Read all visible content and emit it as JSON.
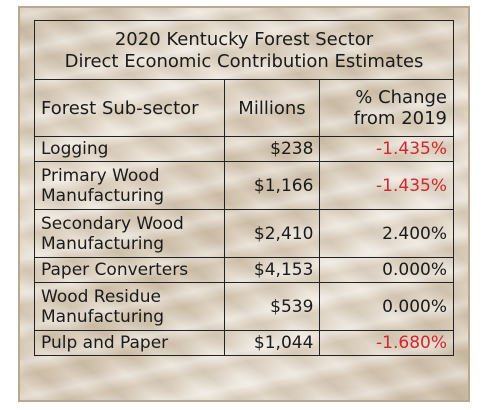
{
  "table": {
    "title_lines": [
      "2020 Kentucky Forest Sector",
      "Direct Economic Contribution Estimates"
    ],
    "headers": {
      "subsector": "Forest Sub-sector",
      "millions": "Millions",
      "pct_lines": [
        "% Change",
        "from 2019"
      ]
    },
    "rows": [
      {
        "subsector_lines": [
          "Logging"
        ],
        "millions": "$238",
        "pct": "-1.435%",
        "pct_color": "#d0282f"
      },
      {
        "subsector_lines": [
          "Primary Wood",
          "Manufacturing"
        ],
        "millions": "$1,166",
        "pct": "-1.435%",
        "pct_color": "#d0282f"
      },
      {
        "subsector_lines": [
          "Secondary Wood",
          "Manufacturing"
        ],
        "millions": "$2,410",
        "pct": "2.400%",
        "pct_color": "#1a1a1a"
      },
      {
        "subsector_lines": [
          "Paper Converters"
        ],
        "millions": "$4,153",
        "pct": "0.000%",
        "pct_color": "#1a1a1a"
      },
      {
        "subsector_lines": [
          "Wood Residue",
          "Manufacturing"
        ],
        "millions": "$539",
        "pct": "0.000%",
        "pct_color": "#1a1a1a"
      },
      {
        "subsector_lines": [
          "Pulp and Paper"
        ],
        "millions": "$1,044",
        "pct": "-1.680%",
        "pct_color": "#d0282f"
      }
    ]
  },
  "colors": {
    "negative": "#d0282f",
    "text": "#1a1a1a",
    "border": "#222222"
  }
}
